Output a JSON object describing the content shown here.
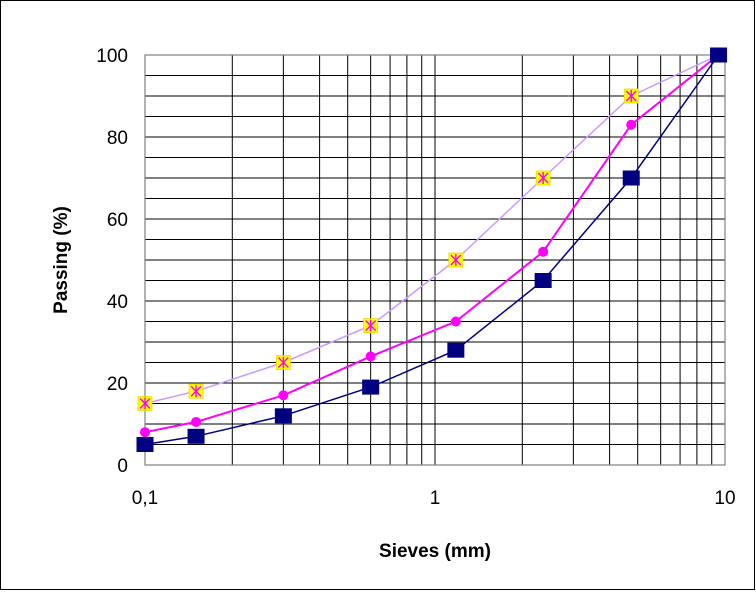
{
  "chart_data": {
    "type": "line",
    "xlabel": "Sieves (mm)",
    "ylabel": "Passing (%)",
    "x_scale": "log",
    "xlim": [
      0.1,
      10
    ],
    "ylim": [
      0,
      100
    ],
    "grid": true,
    "x_tick_labels": [
      "0,1",
      "1",
      "10"
    ],
    "y_tick_labels": [
      "0",
      "20",
      "40",
      "60",
      "80",
      "100"
    ],
    "colors": {
      "series_a": "#000080",
      "series_b": "#ff00ff",
      "series_c_line": "#cc99ff",
      "series_c_marker": "#ffff00",
      "series_c_marker_glyph": "#ff00ff"
    },
    "series": [
      {
        "marker": "square",
        "x": [
          0.1,
          0.15,
          0.3,
          0.6,
          1.18,
          2.36,
          4.75,
          9.5
        ],
        "y": [
          5,
          7,
          12,
          19,
          28,
          45,
          70,
          100
        ]
      },
      {
        "marker": "circle",
        "x": [
          0.1,
          0.15,
          0.3,
          0.6,
          1.18,
          2.36,
          4.75,
          9.5
        ],
        "y": [
          8,
          10.5,
          17,
          26.5,
          35,
          52,
          83,
          100
        ]
      },
      {
        "marker": "yellow-square-star",
        "x": [
          0.1,
          0.15,
          0.3,
          0.6,
          1.18,
          2.36,
          4.75,
          9.5
        ],
        "y": [
          15,
          18,
          25,
          34,
          50,
          70,
          90,
          100
        ]
      }
    ]
  }
}
